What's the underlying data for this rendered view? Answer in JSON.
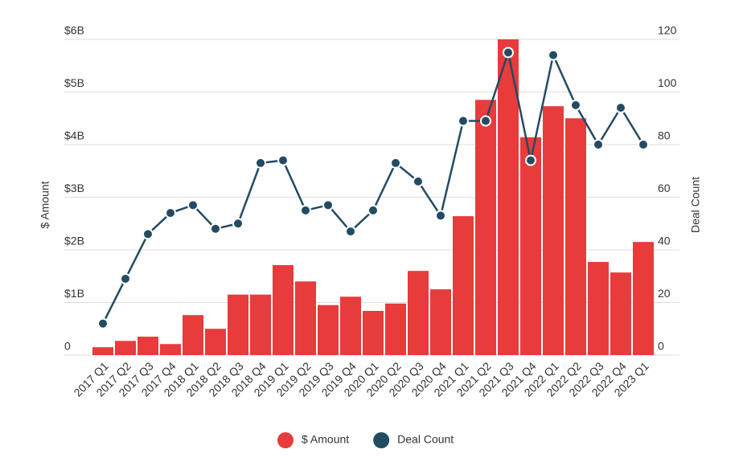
{
  "chart_data": {
    "type": "bar-line",
    "categories": [
      "2017 Q1",
      "2017 Q2",
      "2017 Q3",
      "2017 Q4",
      "2018 Q1",
      "2018 Q2",
      "2018 Q3",
      "2018 Q4",
      "2019 Q1",
      "2019 Q2",
      "2019 Q3",
      "2019 Q4",
      "2020 Q1",
      "2020 Q2",
      "2020 Q3",
      "2020 Q4",
      "2021 Q1",
      "2021 Q2",
      "2021 Q3",
      "2021 Q4",
      "2022 Q1",
      "2022 Q2",
      "2022 Q3",
      "2022 Q4",
      "2023 Q1"
    ],
    "y_label": "$ Amount",
    "y2_label": "Deal Count",
    "series": [
      {
        "name": "$ Amount",
        "type": "bar",
        "color": "#e83b3b",
        "values": [
          0.15,
          0.27,
          0.35,
          0.21,
          0.76,
          0.5,
          1.15,
          1.15,
          1.71,
          1.4,
          0.95,
          1.11,
          0.84,
          0.98,
          1.6,
          1.25,
          2.64,
          4.85,
          6.0,
          4.14,
          4.73,
          4.5,
          1.77,
          1.57,
          2.15
        ]
      },
      {
        "name": "Deal Count",
        "type": "line",
        "axis": "y2",
        "color": "#234b63",
        "values": [
          12,
          29,
          46,
          54,
          57,
          48,
          50,
          73,
          74,
          55,
          57,
          47,
          55,
          73,
          66,
          53,
          89,
          89,
          115,
          74,
          114,
          95,
          80,
          94,
          80
        ]
      }
    ],
    "ylim": [
      0,
      6
    ],
    "yticks": [
      0,
      {
        "value": 1,
        "label": "$1B"
      },
      {
        "value": 2,
        "label": "$2B"
      },
      {
        "value": 3,
        "label": "$3B"
      },
      {
        "value": 4,
        "label": "$4B"
      },
      {
        "value": 5,
        "label": "$5B"
      },
      {
        "value": 6,
        "label": "$6B"
      }
    ],
    "y2lim": [
      0,
      120
    ],
    "y2ticks": [
      0,
      20,
      40,
      60,
      80,
      100,
      120
    ],
    "grid": true,
    "legend": "bottom"
  }
}
